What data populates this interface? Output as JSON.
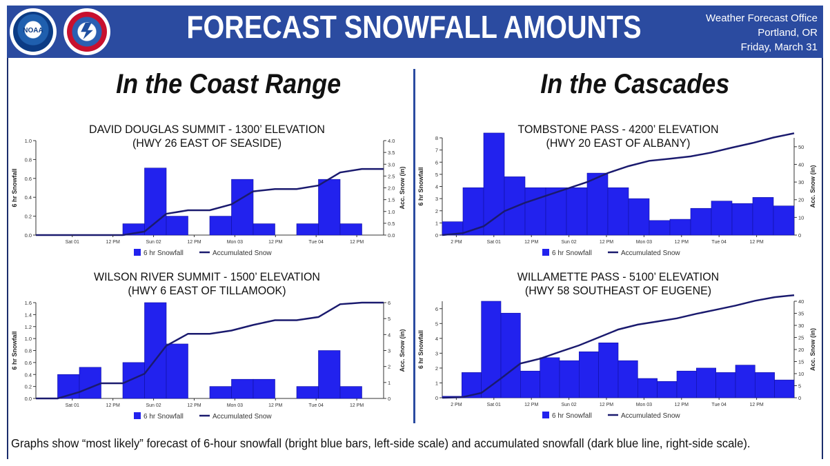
{
  "header": {
    "title": "FORECAST SNOWFALL AMOUNTS",
    "office": "Weather Forecast Office",
    "location": "Portland, OR",
    "date": "Friday, March 31",
    "logos": [
      "noaa-logo",
      "nws-logo"
    ],
    "logo_text": "NOAA",
    "background_color": "#2b4ba0"
  },
  "regions": {
    "coast": "In the Coast Range",
    "cascades": "In the Cascades"
  },
  "footnote": "Graphs show “most likely” forecast of 6-hour snowfall (bright blue bars, left-side scale) and accumulated snowfall (dark blue line, right-side scale).",
  "colors": {
    "bar": "#2222ee",
    "line": "#1a1a6e"
  },
  "chart_data": [
    {
      "type": "bar",
      "title_line1": "DAVID DOUGLAS SUMMIT - 1300’ ELEVATION",
      "title_line2": "(HWY 26 EAST OF SEASIDE)",
      "ylabel": "6 hr Snowfall",
      "y2label": "Acc. Snow (in)",
      "ylim": [
        0,
        1.0
      ],
      "y2lim": [
        0,
        4.0
      ],
      "yticks": [
        "0.0",
        "0.2",
        "0.4",
        "0.6",
        "0.8",
        "1.0"
      ],
      "y2ticks": [
        "0.0",
        "0.5",
        "1.0",
        "1.5",
        "2.0",
        "2.5",
        "3.0",
        "3.5",
        "4.0"
      ],
      "xticks": [
        "Sat 01",
        "12 PM",
        "Sun 02",
        "12 PM",
        "Mon 03",
        "12 PM",
        "Tue 04",
        "12 PM"
      ],
      "series": [
        {
          "name": "6 hr Snowfall",
          "values": [
            0,
            0,
            0,
            0,
            0.12,
            0.71,
            0.2,
            0,
            0.2,
            0.59,
            0.12,
            0,
            0.12,
            0.59,
            0.12,
            0
          ]
        },
        {
          "name": "Accumulated Snow",
          "values": [
            0,
            0,
            0,
            0,
            0,
            0.15,
            0.9,
            1.05,
            1.05,
            1.3,
            1.85,
            1.95,
            1.95,
            2.1,
            2.65,
            2.8,
            2.8
          ]
        }
      ]
    },
    {
      "type": "bar",
      "title_line1": "WILSON RIVER SUMMIT - 1500’ ELEVATION",
      "title_line2": "(HWY 6 EAST OF TILLAMOOK)",
      "ylabel": "6 hr Snowfall",
      "y2label": "Acc. Snow (in)",
      "ylim": [
        0,
        1.6
      ],
      "y2lim": [
        0,
        6
      ],
      "yticks": [
        "0.0",
        "0.2",
        "0.4",
        "0.6",
        "0.8",
        "1.0",
        "1.2",
        "1.4",
        "1.6"
      ],
      "y2ticks": [
        "0",
        "1",
        "2",
        "3",
        "4",
        "5",
        "6"
      ],
      "xticks": [
        "Sat 01",
        "12 PM",
        "Sun 02",
        "12 PM",
        "Mon 03",
        "12 PM",
        "Tue 04",
        "12 PM"
      ],
      "series": [
        {
          "name": "6 hr Snowfall",
          "values": [
            0,
            0.4,
            0.52,
            0,
            0.6,
            1.6,
            0.91,
            0,
            0.2,
            0.32,
            0.32,
            0,
            0.2,
            0.8,
            0.2,
            0
          ]
        },
        {
          "name": "Accumulated Snow",
          "values": [
            0,
            0,
            0.4,
            0.95,
            0.95,
            1.55,
            3.3,
            4.05,
            4.05,
            4.25,
            4.6,
            4.9,
            4.9,
            5.1,
            5.9,
            6.0,
            6.0
          ]
        }
      ]
    },
    {
      "type": "bar",
      "title_line1": "TOMBSTONE PASS - 4200’ ELEVATION",
      "title_line2": "(HWY 20 EAST OF ALBANY)",
      "ylabel": "6 hr Snowfall",
      "y2label": "Acc. Snow (in)",
      "ylim": [
        0,
        8
      ],
      "y2lim": [
        0,
        55
      ],
      "yticks": [
        "0",
        "1",
        "2",
        "3",
        "4",
        "5",
        "6",
        "7",
        "8"
      ],
      "y2ticks": [
        "0",
        "10",
        "20",
        "30",
        "40",
        "50"
      ],
      "xticks": [
        "2 PM",
        "Sat 01",
        "12 PM",
        "Sun 02",
        "12 PM",
        "Mon 03",
        "12 PM",
        "Tue 04",
        "12 PM"
      ],
      "series": [
        {
          "name": "6 hr Snowfall",
          "values": [
            1.1,
            3.9,
            8.4,
            4.8,
            3.9,
            3.9,
            3.9,
            5.1,
            3.9,
            3.0,
            1.2,
            1.3,
            2.2,
            2.8,
            2.6,
            3.1,
            2.4
          ]
        },
        {
          "name": "Accumulated Snow",
          "values": [
            0,
            1.1,
            5,
            13.5,
            18.3,
            22.2,
            26.1,
            30,
            35.1,
            39,
            42,
            43.2,
            44.5,
            46.7,
            49.5,
            52.1,
            55.2,
            57.6
          ]
        }
      ]
    },
    {
      "type": "bar",
      "title_line1": "WILLAMETTE PASS - 5100’ ELEVATION",
      "title_line2": "(HWY 58 SOUTHEAST OF EUGENE)",
      "ylabel": "6 hr Snowfall",
      "y2label": "Acc. Snow (in)",
      "ylim": [
        0,
        6.5
      ],
      "y2lim": [
        0,
        40
      ],
      "yticks": [
        "0",
        "1",
        "2",
        "3",
        "4",
        "5",
        "6"
      ],
      "y2ticks": [
        "0",
        "5",
        "10",
        "15",
        "20",
        "25",
        "30",
        "35",
        "40"
      ],
      "xticks": [
        "2 PM",
        "Sat 01",
        "12 PM",
        "Sun 02",
        "12 PM",
        "Mon 03",
        "12 PM",
        "Tue 04",
        "12 PM"
      ],
      "series": [
        {
          "name": "6 hr Snowfall",
          "values": [
            0.1,
            1.7,
            6.5,
            5.7,
            1.8,
            2.7,
            2.5,
            3.1,
            3.7,
            2.5,
            1.3,
            1.1,
            1.8,
            2.0,
            1.7,
            2.2,
            1.7,
            1.2
          ]
        },
        {
          "name": "Accumulated Snow",
          "values": [
            0,
            0.2,
            2,
            8,
            14.2,
            16.2,
            19,
            21.7,
            25,
            28.3,
            30.3,
            31.6,
            32.9,
            34.8,
            36.5,
            38.2,
            40.2,
            41.7,
            42.5
          ]
        }
      ]
    }
  ]
}
